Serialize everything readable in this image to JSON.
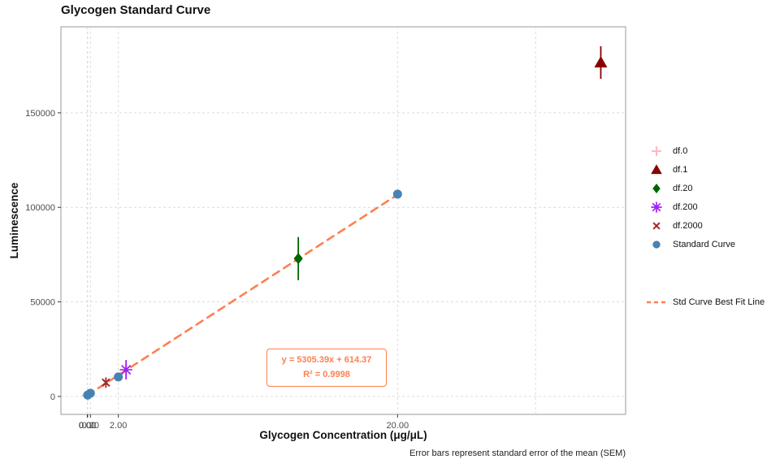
{
  "title": "Glycogen Standard Curve",
  "caption": "Error bars represent standard error of the mean (SEM)",
  "axes": {
    "x_title": "Glycogen Concentration (μg/μL)",
    "y_title": "Luminescence"
  },
  "annotation": {
    "line1": "y = 5305.39x + 614.37",
    "line2": "R² = 0.9998"
  },
  "legend": {
    "items": [
      {
        "label": "df.0"
      },
      {
        "label": "df.1"
      },
      {
        "label": "df.20"
      },
      {
        "label": "df.200"
      },
      {
        "label": "df.2000"
      },
      {
        "label": "Standard Curve"
      }
    ],
    "fit_label": "Std Curve Best Fit Line"
  },
  "chart_data": {
    "type": "scatter",
    "title": "Glycogen Standard Curve",
    "xlabel": "Glycogen Concentration (μg/μL)",
    "ylabel": "Luminescence",
    "xlim": [
      -1.7,
      34.7
    ],
    "ylim": [
      -9500,
      195500
    ],
    "grid": "dashed",
    "legend_position": "right",
    "x_ticks": [
      {
        "value": 0,
        "label": "0.00"
      },
      {
        "value": 0.02,
        "label": "0.02"
      },
      {
        "value": 0.2,
        "label": "0.20"
      },
      {
        "value": 2,
        "label": "2.00"
      },
      {
        "value": 20,
        "label": "20.00"
      }
    ],
    "x_gridlines": [
      0,
      0.02,
      0.2,
      2,
      20,
      28.9
    ],
    "y_ticks": [
      {
        "value": 0,
        "label": "0"
      },
      {
        "value": 50000,
        "label": "50000"
      },
      {
        "value": 100000,
        "label": "100000"
      },
      {
        "value": 150000,
        "label": "150000"
      }
    ],
    "series": [
      {
        "name": "df.0",
        "marker": "plus",
        "color": "#FFB6C1",
        "points": [
          {
            "x": 0.03,
            "y": 600,
            "err": 1500
          }
        ]
      },
      {
        "name": "df.1",
        "marker": "triangle",
        "color": "#8B0000",
        "points": [
          {
            "x": 33.1,
            "y": 176600,
            "err": 8600
          }
        ]
      },
      {
        "name": "df.20",
        "marker": "diamond",
        "color": "#006400",
        "points": [
          {
            "x": 13.6,
            "y": 72900,
            "err": 11400
          }
        ]
      },
      {
        "name": "df.200",
        "marker": "star",
        "color": "#A020F0",
        "points": [
          {
            "x": 2.5,
            "y": 14100,
            "err": 5200
          }
        ]
      },
      {
        "name": "df.2000",
        "marker": "x",
        "color": "#A52A2A",
        "points": [
          {
            "x": 1.2,
            "y": 7300,
            "err": 2800
          }
        ]
      },
      {
        "name": "Standard Curve",
        "marker": "circle",
        "color": "#4682B4",
        "points": [
          {
            "x": 0.02,
            "y": 720,
            "err": 300
          },
          {
            "x": 0.2,
            "y": 1675,
            "err": 400
          },
          {
            "x": 2,
            "y": 10300,
            "err": 800
          },
          {
            "x": 20,
            "y": 107000,
            "err": 1500
          }
        ]
      }
    ],
    "fit_line": {
      "name": "Std Curve Best Fit Line",
      "color": "#FF7F50",
      "dash": true,
      "x1": 0,
      "y1": 614.37,
      "x2": 20,
      "y2": 106722,
      "equation": "y = 5305.39x + 614.37",
      "r_squared": "R² = 0.9998"
    }
  }
}
